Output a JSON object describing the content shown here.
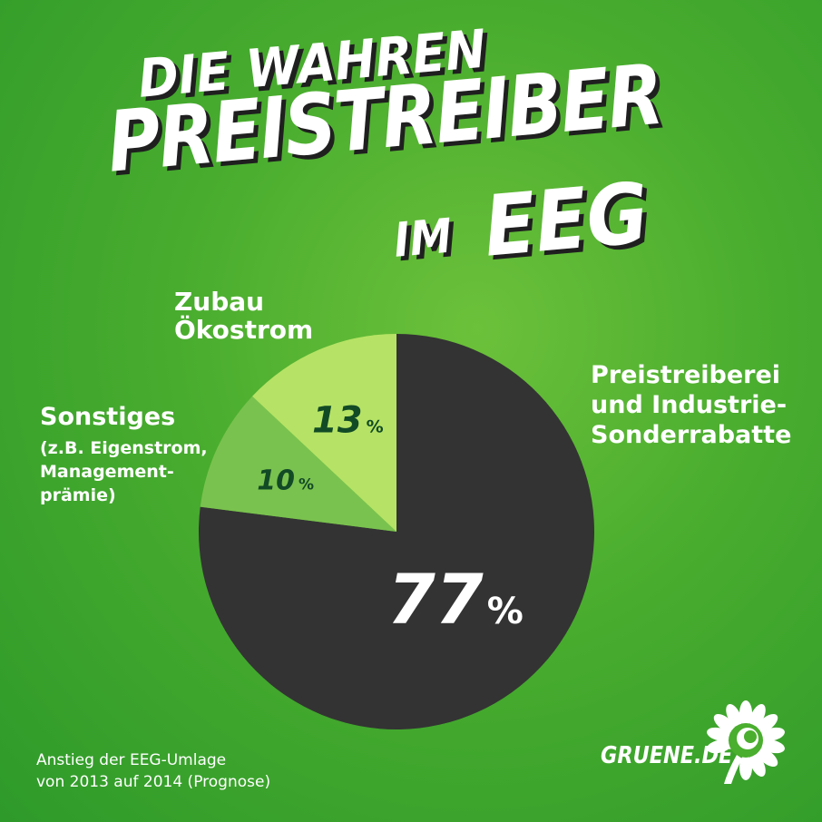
{
  "header": {
    "line1": "DIE WAHREN",
    "line2": "PREISTREIBER",
    "line3a": "IM",
    "line3b": "EEG"
  },
  "chart_data": {
    "type": "pie",
    "slices": [
      {
        "label_lines": [
          "Preistreiberei",
          "und Industrie-",
          "Sonderrabatte"
        ],
        "value": 77,
        "display": "77",
        "unit": "%",
        "color": "#333333",
        "text_color": "#ffffff"
      },
      {
        "label_lines": [
          "Sonstiges"
        ],
        "sub_lines": [
          "(z.B. Eigenstrom,",
          "Management-",
          "prämie)"
        ],
        "value": 10,
        "display": "10",
        "unit": "%",
        "color": "#7ac24f",
        "text_color": "#124a26"
      },
      {
        "label_lines": [
          "Zubau",
          "Ökostrom"
        ],
        "value": 13,
        "display": "13",
        "unit": "%",
        "color": "#b6e365",
        "text_color": "#124a26"
      }
    ],
    "start": "12 o'clock",
    "direction": "clockwise"
  },
  "footnote": {
    "line1": "Anstieg der EEG-Umlage",
    "line2": "von 2013 auf 2014 (Prognose)"
  },
  "brand": {
    "text": "GRUENE.DE",
    "logo_icon": "sunflower-icon"
  }
}
